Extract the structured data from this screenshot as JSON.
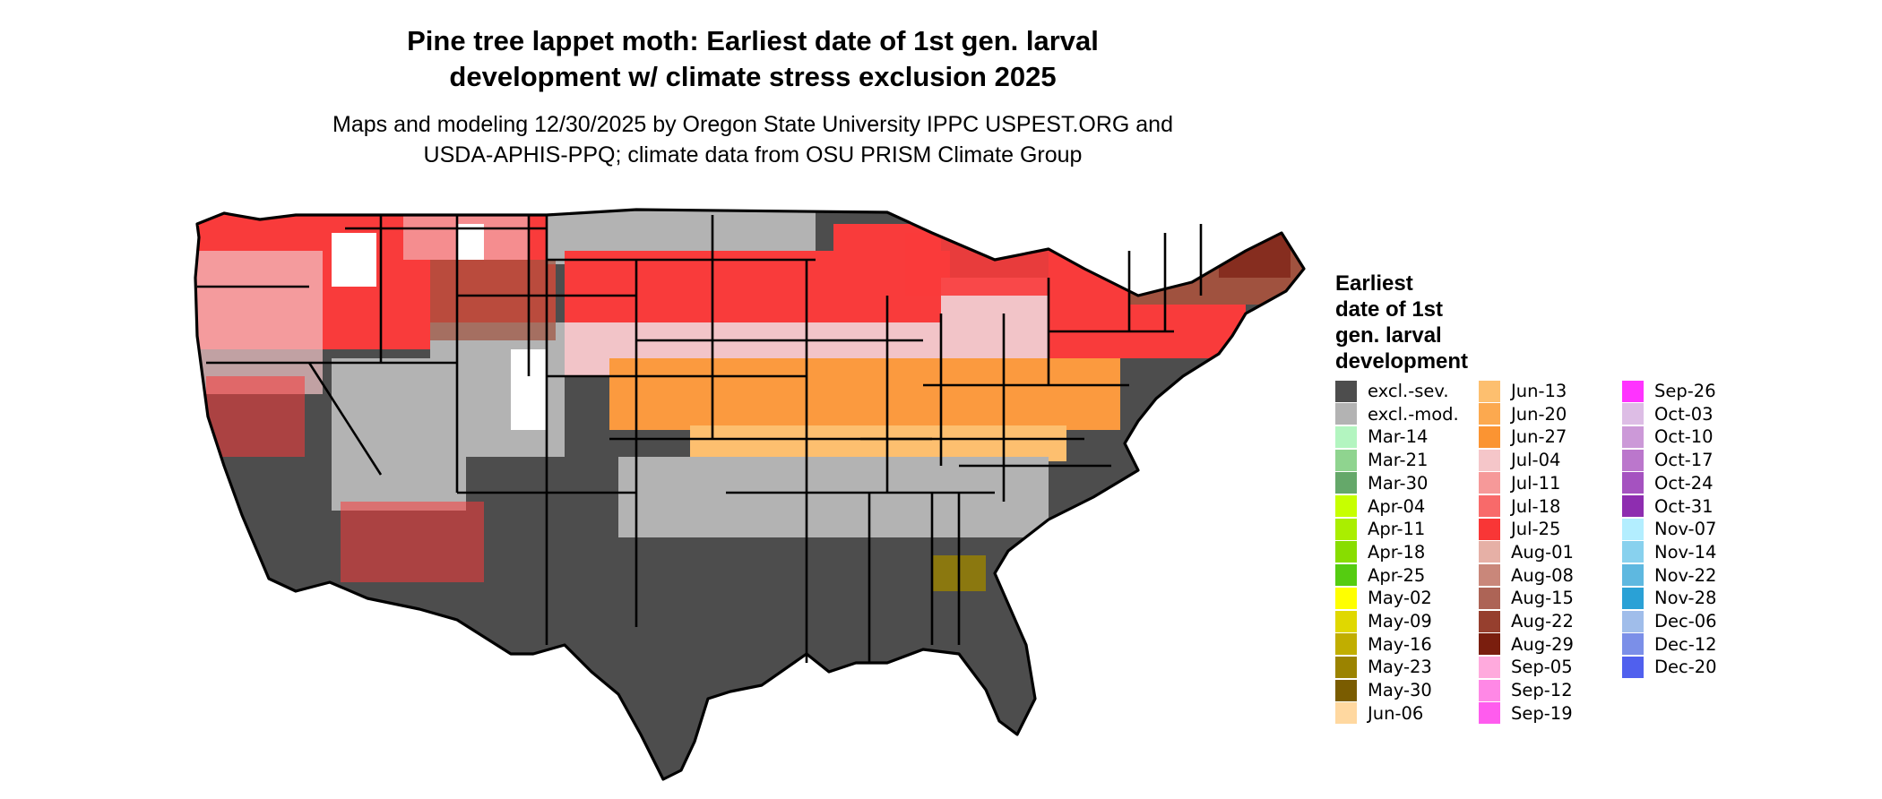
{
  "header": {
    "title_line1": "Pine tree lappet moth: Earliest date of 1st gen. larval",
    "title_line2": "development w/ climate stress exclusion 2025",
    "subtitle_line1": "Maps and modeling 12/30/2025 by Oregon State University IPPC USPEST.ORG and",
    "subtitle_line2": "USDA-APHIS-PPQ; climate data from OSU PRISM Climate Group"
  },
  "map": {
    "region": "conterminous-united-states",
    "background_color": "#ffffff",
    "state_border_color": "#000000",
    "colors": {
      "excl_sev": "#4d4d4d",
      "excl_mod": "#b3b3b3",
      "summer_orange": "#fb9a3f",
      "light_orange": "#fdbf6f",
      "jul_pink": "#f2c4c8",
      "jul_red": "#f93b3b",
      "aug_brown": "#a0523f",
      "aug_dark": "#7a1e12",
      "may_olive": "#9b8300",
      "snow": "#ffffff",
      "sep_magenta": "#ff66ff"
    }
  },
  "legend": {
    "title_lines": [
      "Earliest",
      "date of 1st",
      "gen. larval",
      "development"
    ],
    "columns": [
      [
        {
          "label": "excl.-sev.",
          "color": "#4d4d4d"
        },
        {
          "label": "excl.-mod.",
          "color": "#b3b3b3"
        },
        {
          "label": "Mar-14",
          "color": "#b3f5c0"
        },
        {
          "label": "Mar-21",
          "color": "#8fd48f"
        },
        {
          "label": "Mar-30",
          "color": "#65a86a"
        },
        {
          "label": "Apr-04",
          "color": "#c7ff00"
        },
        {
          "label": "Apr-11",
          "color": "#aaee00"
        },
        {
          "label": "Apr-18",
          "color": "#88dd00"
        },
        {
          "label": "Apr-25",
          "color": "#55cc11"
        },
        {
          "label": "May-02",
          "color": "#ffff00"
        },
        {
          "label": "May-09",
          "color": "#e0d800"
        },
        {
          "label": "May-16",
          "color": "#c1ae00"
        },
        {
          "label": "May-23",
          "color": "#9b8300"
        },
        {
          "label": "May-30",
          "color": "#7a5c00"
        },
        {
          "label": "Jun-06",
          "color": "#ffd8a0"
        }
      ],
      [
        {
          "label": "Jun-13",
          "color": "#fdbf6f"
        },
        {
          "label": "Jun-20",
          "color": "#fca94f"
        },
        {
          "label": "Jun-27",
          "color": "#fb9432"
        },
        {
          "label": "Jul-04",
          "color": "#f5c6c9"
        },
        {
          "label": "Jul-11",
          "color": "#f69999"
        },
        {
          "label": "Jul-18",
          "color": "#f86a6a"
        },
        {
          "label": "Jul-25",
          "color": "#f93636"
        },
        {
          "label": "Aug-01",
          "color": "#e6b0a6"
        },
        {
          "label": "Aug-08",
          "color": "#c9877a"
        },
        {
          "label": "Aug-15",
          "color": "#ad6456"
        },
        {
          "label": "Aug-22",
          "color": "#963f2e"
        },
        {
          "label": "Aug-29",
          "color": "#7a1e0e"
        },
        {
          "label": "Sep-05",
          "color": "#ffaadd"
        },
        {
          "label": "Sep-12",
          "color": "#ff88e6"
        },
        {
          "label": "Sep-19",
          "color": "#ff5cee"
        }
      ],
      [
        {
          "label": "Sep-26",
          "color": "#ff33ff"
        },
        {
          "label": "Oct-03",
          "color": "#ddbde5"
        },
        {
          "label": "Oct-10",
          "color": "#cc99d8"
        },
        {
          "label": "Oct-17",
          "color": "#bb77cc"
        },
        {
          "label": "Oct-24",
          "color": "#a552c0"
        },
        {
          "label": "Oct-31",
          "color": "#8e2db0"
        },
        {
          "label": "Nov-07",
          "color": "#b3eeff"
        },
        {
          "label": "Nov-14",
          "color": "#88d1ee"
        },
        {
          "label": "Nov-22",
          "color": "#5eb8e0"
        },
        {
          "label": "Nov-28",
          "color": "#2aa1d6"
        },
        {
          "label": "Dec-06",
          "color": "#a0bdea"
        },
        {
          "label": "Dec-12",
          "color": "#7b8fe8"
        },
        {
          "label": "Dec-20",
          "color": "#5060ee"
        }
      ]
    ]
  }
}
